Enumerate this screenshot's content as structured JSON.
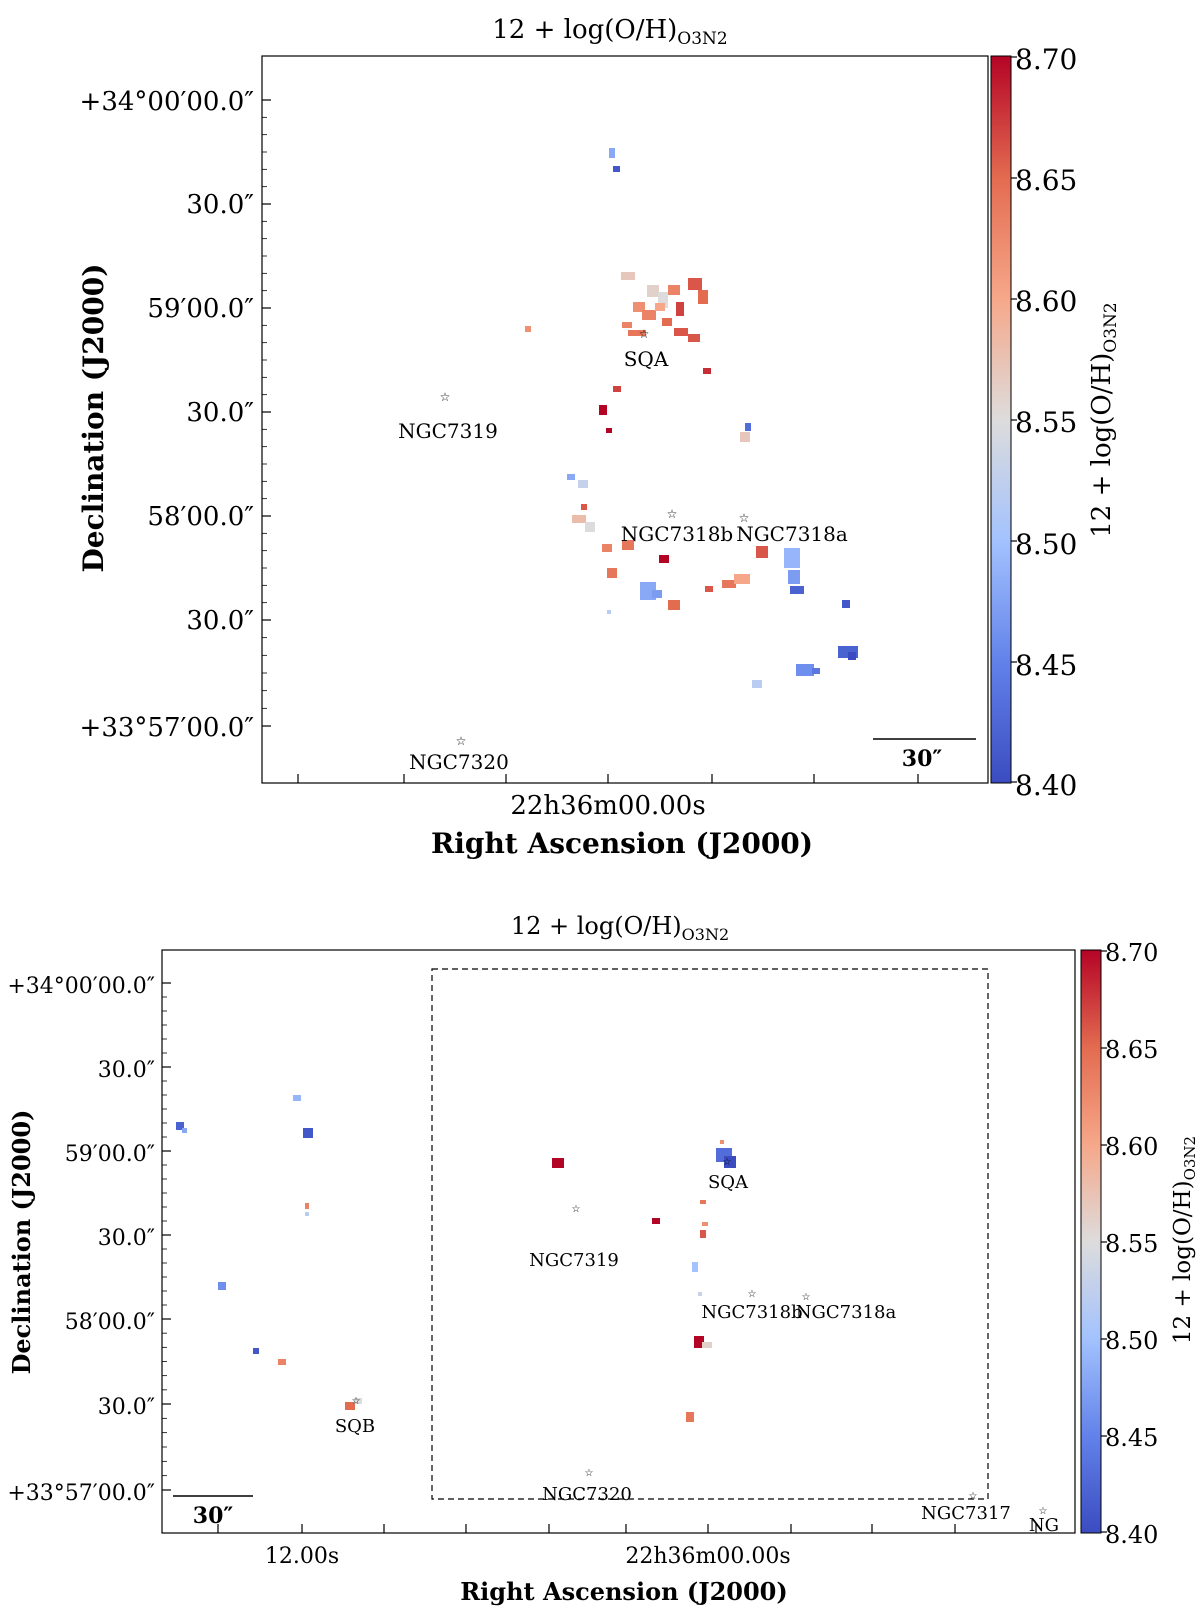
{
  "chart_data": [
    {
      "type": "heatmap",
      "title": "12 + log(O/H)",
      "title_subscript": "O3N2",
      "xlabel": "Right Ascension (J2000)",
      "ylabel": "Declination (J2000)",
      "x_tick_label": "22h36m00.00s",
      "y_tick_labels": [
        "+34°00′00.0″",
        "30.0″",
        "59′00.0″",
        "30.0″",
        "58′00.0″",
        "30.0″",
        "+33°57′00.0″"
      ],
      "colorbar": {
        "label": "12 + log(O/H)",
        "label_subscript": "O3N2",
        "ticks": [
          "8.70",
          "8.65",
          "8.60",
          "8.55",
          "8.50",
          "8.45",
          "8.40"
        ],
        "vmin": 8.4,
        "vmax": 8.7,
        "colormap": "coolwarm"
      },
      "scalebar_label": "30″",
      "sources": [
        {
          "name": "SQA"
        },
        {
          "name": "NGC7319"
        },
        {
          "name": "NGC7318b"
        },
        {
          "name": "NGC7318a"
        },
        {
          "name": "NGC7320"
        }
      ]
    },
    {
      "type": "heatmap",
      "title": "12 + log(O/H)",
      "title_subscript": "O3N2",
      "xlabel": "Right Ascension (J2000)",
      "ylabel": "Declination (J2000)",
      "x_tick_labels": [
        "12.00s",
        "22h36m00.00s"
      ],
      "y_tick_labels": [
        "+34°00′00.0″",
        "30.0″",
        "59′00.0″",
        "30.0″",
        "58′00.0″",
        "30.0″",
        "+33°57′00.0″"
      ],
      "colorbar": {
        "label": "12 + log(O/H)",
        "label_subscript": "O3N2",
        "ticks": [
          "8.70",
          "8.65",
          "8.60",
          "8.55",
          "8.50",
          "8.45",
          "8.40"
        ],
        "vmin": 8.4,
        "vmax": 8.7,
        "colormap": "coolwarm"
      },
      "scalebar_label": "30″",
      "sources": [
        {
          "name": "SQA"
        },
        {
          "name": "NGC7319"
        },
        {
          "name": "NGC7318b"
        },
        {
          "name": "NGC7318a"
        },
        {
          "name": "SQB"
        },
        {
          "name": "NGC7320"
        },
        {
          "name": "NGC7317"
        },
        {
          "name": "NG"
        }
      ]
    }
  ]
}
